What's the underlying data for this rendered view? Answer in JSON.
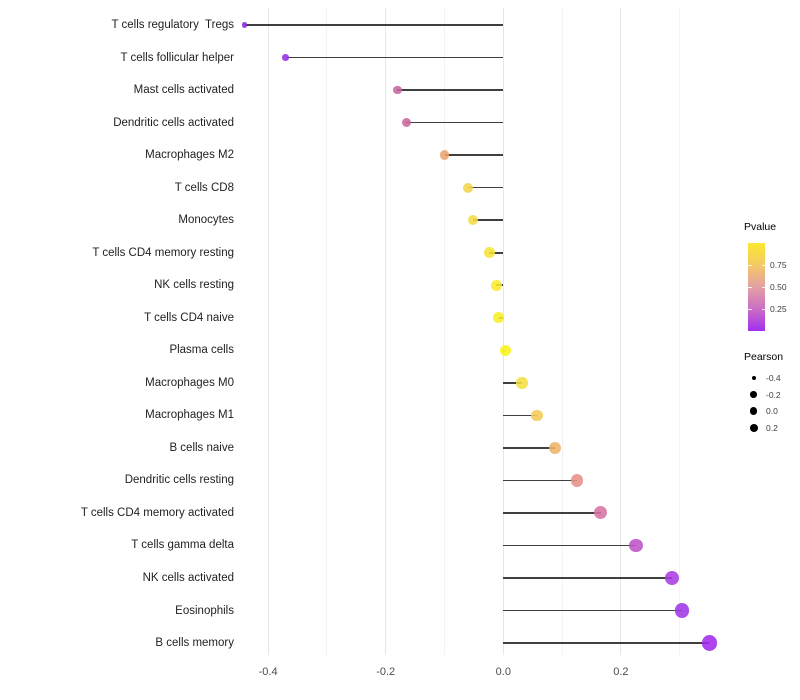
{
  "x_axis": {
    "major_ticks": [
      {
        "label": "-0.4",
        "value": -0.4
      },
      {
        "label": "-0.2",
        "value": -0.2
      },
      {
        "label": "0.0",
        "value": 0.0
      },
      {
        "label": "0.2",
        "value": 0.2
      }
    ],
    "minor_values": [
      -0.3,
      -0.1,
      0.1,
      0.3
    ]
  },
  "legend": {
    "pvalue": {
      "title": "Pvalue",
      "ticks": [
        {
          "label": "0.75",
          "value": 0.75
        },
        {
          "label": "0.50",
          "value": 0.5
        },
        {
          "label": "0.25",
          "value": 0.25
        }
      ],
      "gradient_colors": [
        "#fbe92f",
        "#f4c967",
        "#e4a0a4",
        "#cb6ec4",
        "#a22ff0"
      ]
    },
    "pearson": {
      "title": "Pearson",
      "entries": [
        {
          "label": "-0.4",
          "diameter": 4
        },
        {
          "label": "-0.2",
          "diameter": 6.5
        },
        {
          "label": "0.0",
          "diameter": 7.5
        },
        {
          "label": "0.2",
          "diameter": 8
        }
      ]
    }
  },
  "chart_data": {
    "type": "scatter",
    "variant": "lollipop",
    "orientation": "horizontal",
    "title": "",
    "xlabel": "",
    "ylabel": "",
    "xlim": [
      -0.48,
      0.39
    ],
    "x_ticks": [
      -0.4,
      -0.2,
      0.0,
      0.2
    ],
    "grid": "vertical-only",
    "legend_position": "right",
    "color_scale": {
      "name": "Pvalue",
      "high_color": "#fbe92f",
      "low_color": "#a22ff0",
      "ticks": [
        0.75,
        0.5,
        0.25
      ]
    },
    "size_scale": {
      "name": "Pearson",
      "ticks": [
        -0.4,
        -0.2,
        0.0,
        0.2
      ]
    },
    "stem_color": "#3f3f3f",
    "points": [
      {
        "category": "T cells regulatory  Tregs",
        "pearson": -0.44,
        "dot_color": "#8829e2"
      },
      {
        "category": "T cells follicular helper",
        "pearson": -0.37,
        "dot_color": "#9430e6"
      },
      {
        "category": "Mast cells activated",
        "pearson": -0.18,
        "dot_color": "#c666a2"
      },
      {
        "category": "Dendritic cells activated",
        "pearson": -0.165,
        "dot_color": "#ca689e"
      },
      {
        "category": "Macrophages M2",
        "pearson": -0.1,
        "dot_color": "#eca56f"
      },
      {
        "category": "T cells CD8",
        "pearson": -0.06,
        "dot_color": "#f2d44c"
      },
      {
        "category": "Monocytes",
        "pearson": -0.052,
        "dot_color": "#f3dc45"
      },
      {
        "category": "T cells CD4 memory resting",
        "pearson": -0.024,
        "dot_color": "#f6e438"
      },
      {
        "category": "NK cells resting",
        "pearson": -0.012,
        "dot_color": "#f8ec2b"
      },
      {
        "category": "T cells CD4 naive",
        "pearson": -0.008,
        "dot_color": "#f9ee25"
      },
      {
        "category": "Plasma cells",
        "pearson": 0.003,
        "dot_color": "#fbf218"
      },
      {
        "category": "Macrophages M0",
        "pearson": 0.032,
        "dot_color": "#f3e042"
      },
      {
        "category": "Macrophages M1",
        "pearson": 0.057,
        "dot_color": "#f2cb55"
      },
      {
        "category": "B cells naive",
        "pearson": 0.088,
        "dot_color": "#eeb468"
      },
      {
        "category": "Dendritic cells resting",
        "pearson": 0.125,
        "dot_color": "#e79287"
      },
      {
        "category": "T cells CD4 memory activated",
        "pearson": 0.166,
        "dot_color": "#d773a3"
      },
      {
        "category": "T cells gamma delta",
        "pearson": 0.226,
        "dot_color": "#bd54c7"
      },
      {
        "category": "NK cells activated",
        "pearson": 0.287,
        "dot_color": "#a93ce0"
      },
      {
        "category": "Eosinophils",
        "pearson": 0.304,
        "dot_color": "#a136e5"
      },
      {
        "category": "B cells memory",
        "pearson": 0.35,
        "dot_color": "#a32aec"
      }
    ]
  }
}
